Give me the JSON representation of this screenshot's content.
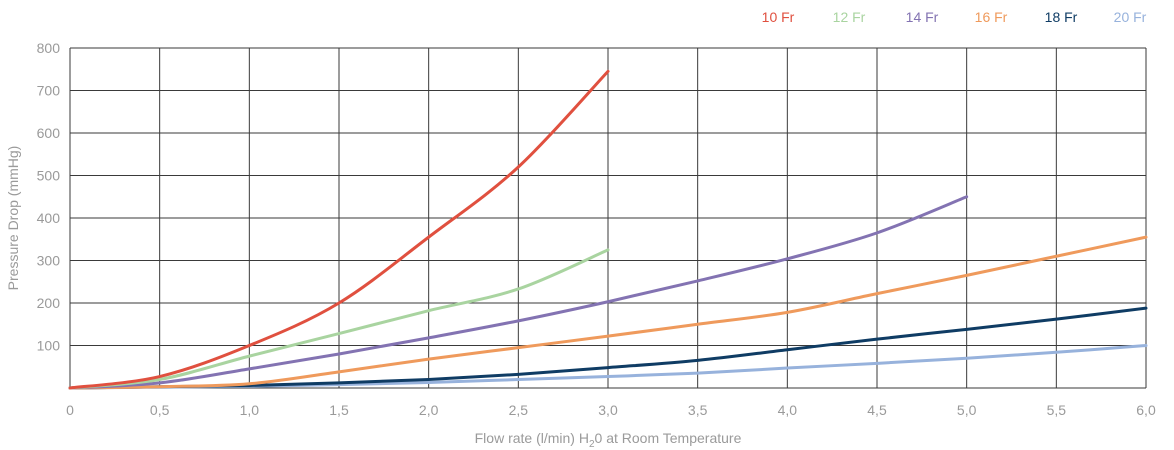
{
  "chart_data": {
    "type": "line",
    "xlabel": {
      "main": "Flow rate (l/min) H",
      "sub": "2",
      "rest": "0 at Room Temperature"
    },
    "ylabel": "Pressure Drop (mmHg)",
    "xlim": [
      0,
      6
    ],
    "ylim": [
      0,
      800
    ],
    "x_ticks": [
      "0",
      "0,5",
      "1,0",
      "1,5",
      "2,0",
      "2,5",
      "3,0",
      "3,5",
      "4,0",
      "4,5",
      "5,0",
      "5,5",
      "6,0"
    ],
    "y_ticks": [
      "100",
      "200",
      "300",
      "400",
      "500",
      "600",
      "700",
      "800"
    ],
    "grid": true,
    "legend_position": "top-right",
    "series": [
      {
        "name": "10 Fr",
        "color": "#e0503f",
        "points": [
          [
            0,
            0
          ],
          [
            0.5,
            27
          ],
          [
            1.0,
            100
          ],
          [
            1.5,
            200
          ],
          [
            2.0,
            355
          ],
          [
            2.5,
            520
          ],
          [
            3.0,
            745
          ]
        ]
      },
      {
        "name": "12 Fr",
        "color": "#a9d4a0",
        "points": [
          [
            0,
            0
          ],
          [
            0.5,
            20
          ],
          [
            1.0,
            75
          ],
          [
            1.5,
            128
          ],
          [
            2.0,
            182
          ],
          [
            2.5,
            233
          ],
          [
            3.0,
            325
          ]
        ]
      },
      {
        "name": "14 Fr",
        "color": "#8373b2",
        "points": [
          [
            0,
            0
          ],
          [
            0.5,
            12
          ],
          [
            1.0,
            45
          ],
          [
            1.5,
            80
          ],
          [
            2.0,
            118
          ],
          [
            2.5,
            158
          ],
          [
            3.0,
            203
          ],
          [
            3.5,
            252
          ],
          [
            4.0,
            304
          ],
          [
            4.5,
            365
          ],
          [
            5.0,
            450
          ]
        ]
      },
      {
        "name": "16 Fr",
        "color": "#ef9a5c",
        "points": [
          [
            0,
            0
          ],
          [
            0.5,
            3
          ],
          [
            1.0,
            10
          ],
          [
            1.5,
            38
          ],
          [
            2.0,
            68
          ],
          [
            2.5,
            95
          ],
          [
            3.0,
            122
          ],
          [
            3.5,
            150
          ],
          [
            4.0,
            178
          ],
          [
            4.5,
            222
          ],
          [
            5.0,
            265
          ],
          [
            5.5,
            310
          ],
          [
            6.0,
            355
          ]
        ]
      },
      {
        "name": "18 Fr",
        "color": "#0f3c64",
        "points": [
          [
            0,
            0
          ],
          [
            0.5,
            3
          ],
          [
            1.0,
            6
          ],
          [
            1.5,
            12
          ],
          [
            2.0,
            20
          ],
          [
            2.5,
            32
          ],
          [
            3.0,
            48
          ],
          [
            3.5,
            65
          ],
          [
            4.0,
            90
          ],
          [
            4.5,
            115
          ],
          [
            5.0,
            138
          ],
          [
            5.5,
            162
          ],
          [
            6.0,
            188
          ]
        ]
      },
      {
        "name": "20 Fr",
        "color": "#97b2dc",
        "points": [
          [
            0,
            0
          ],
          [
            0.5,
            2
          ],
          [
            1.0,
            4
          ],
          [
            1.5,
            8
          ],
          [
            2.0,
            13
          ],
          [
            2.5,
            20
          ],
          [
            3.0,
            27
          ],
          [
            3.5,
            35
          ],
          [
            4.0,
            47
          ],
          [
            4.5,
            58
          ],
          [
            5.0,
            70
          ],
          [
            5.5,
            84
          ],
          [
            6.0,
            100
          ]
        ]
      }
    ]
  }
}
